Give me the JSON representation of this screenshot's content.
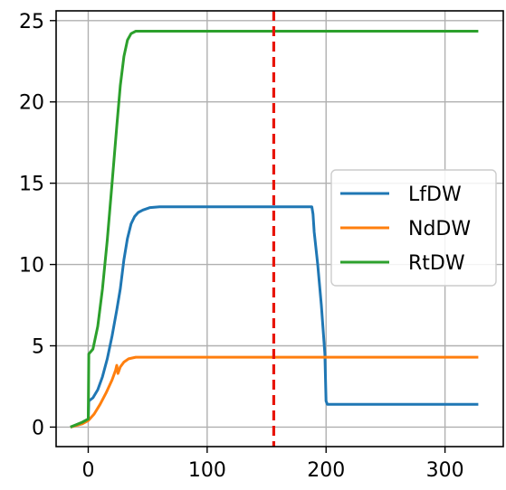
{
  "chart_data": {
    "type": "line",
    "title": "",
    "xlabel": "",
    "ylabel": "",
    "xlim": [
      -27,
      349
    ],
    "ylim": [
      -1.2,
      25.6
    ],
    "xticks": [
      0,
      100,
      200,
      300
    ],
    "xtick_labels": [
      "0",
      "100",
      "200",
      "300"
    ],
    "yticks": [
      0,
      5,
      10,
      15,
      20,
      25
    ],
    "ytick_labels": [
      "0",
      "5",
      "10",
      "15",
      "20",
      "25"
    ],
    "grid": true,
    "legend_position": "center-right",
    "series": [
      {
        "name": "LfDW",
        "color": "#1f77b4",
        "points": [
          [
            -15,
            0
          ],
          [
            -5,
            0.25
          ],
          [
            0,
            0.45
          ],
          [
            0.5,
            1.6
          ],
          [
            4,
            1.8
          ],
          [
            8,
            2.3
          ],
          [
            12,
            3.1
          ],
          [
            16,
            4.2
          ],
          [
            20,
            5.6
          ],
          [
            24,
            7.2
          ],
          [
            27,
            8.5
          ],
          [
            30,
            10.3
          ],
          [
            33,
            11.6
          ],
          [
            36,
            12.5
          ],
          [
            39,
            12.95
          ],
          [
            42,
            13.2
          ],
          [
            46,
            13.35
          ],
          [
            52,
            13.5
          ],
          [
            60,
            13.55
          ],
          [
            100,
            13.55
          ],
          [
            150,
            13.55
          ],
          [
            188,
            13.55
          ],
          [
            189,
            13.1
          ],
          [
            190,
            12.0
          ],
          [
            193,
            10.0
          ],
          [
            196,
            7.5
          ],
          [
            199,
            4.5
          ],
          [
            200,
            1.6
          ],
          [
            201,
            1.4
          ],
          [
            260,
            1.4
          ],
          [
            328,
            1.4
          ]
        ]
      },
      {
        "name": "NdDW",
        "color": "#ff7f0e",
        "points": [
          [
            -15,
            0
          ],
          [
            -5,
            0.2
          ],
          [
            0,
            0.4
          ],
          [
            5,
            0.8
          ],
          [
            10,
            1.4
          ],
          [
            15,
            2.1
          ],
          [
            20,
            2.9
          ],
          [
            23,
            3.5
          ],
          [
            24,
            3.8
          ],
          [
            25,
            3.3
          ],
          [
            27,
            3.7
          ],
          [
            30,
            4.0
          ],
          [
            34,
            4.2
          ],
          [
            40,
            4.3
          ],
          [
            100,
            4.3
          ],
          [
            200,
            4.3
          ],
          [
            328,
            4.3
          ]
        ]
      },
      {
        "name": "RtDW",
        "color": "#2ca02c",
        "points": [
          [
            -15,
            0
          ],
          [
            -5,
            0.3
          ],
          [
            0,
            0.5
          ],
          [
            0.5,
            4.5
          ],
          [
            4,
            4.8
          ],
          [
            8,
            6.2
          ],
          [
            12,
            8.5
          ],
          [
            16,
            11.5
          ],
          [
            20,
            15.0
          ],
          [
            24,
            18.5
          ],
          [
            27,
            21.0
          ],
          [
            30,
            22.8
          ],
          [
            33,
            23.8
          ],
          [
            36,
            24.2
          ],
          [
            40,
            24.35
          ],
          [
            60,
            24.35
          ],
          [
            200,
            24.35
          ],
          [
            328,
            24.35
          ]
        ]
      }
    ],
    "vline": {
      "x": 156,
      "color": "#e8150a",
      "style": "dashed"
    }
  }
}
